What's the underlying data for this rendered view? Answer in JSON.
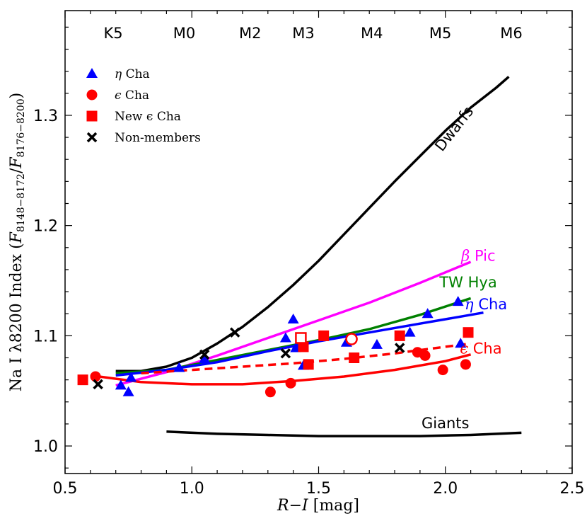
{
  "chart_data": {
    "type": "scatter",
    "xlabel": "R−I [mag]",
    "xlabel_var": "R−I",
    "xlabel_unit": "[mag]",
    "ylabel": "Na I λ8200 Index (F8148−8172/F8176−8200)",
    "ylabel_main": "Na I λ8200 Index (",
    "ylabel_num": "F",
    "ylabel_num_sub": "8148−8172",
    "ylabel_sep": "/",
    "ylabel_den": "F",
    "ylabel_den_sub": "8176−8200",
    "ylabel_close": ")",
    "xlim": [
      0.5,
      2.5
    ],
    "ylim": [
      0.975,
      1.395
    ],
    "x_ticks": [
      0.5,
      1.0,
      1.5,
      2.0,
      2.5
    ],
    "x_tick_labels": [
      "0.5",
      "1.0",
      "1.5",
      "2.0",
      "2.5"
    ],
    "y_ticks": [
      1.0,
      1.1,
      1.2,
      1.3
    ],
    "y_tick_labels": [
      "1.0",
      "1.1",
      "1.2",
      "1.3"
    ],
    "grid": false,
    "legend_position": "top-left",
    "spectral_types": [
      {
        "label": "K5",
        "x": 0.69
      },
      {
        "label": "M0",
        "x": 0.97
      },
      {
        "label": "M2",
        "x": 1.23
      },
      {
        "label": "M3",
        "x": 1.44
      },
      {
        "label": "M4",
        "x": 1.71
      },
      {
        "label": "M5",
        "x": 1.98
      },
      {
        "label": "M6",
        "x": 2.26
      }
    ],
    "series": [
      {
        "name": "η Cha",
        "marker": "triangle",
        "color": "#0000ff",
        "points": [
          [
            0.72,
            1.055
          ],
          [
            0.75,
            1.049
          ],
          [
            0.76,
            1.062
          ],
          [
            0.95,
            1.071
          ],
          [
            1.05,
            1.079
          ],
          [
            1.37,
            1.098
          ],
          [
            1.4,
            1.115
          ],
          [
            1.41,
            1.089
          ],
          [
            1.44,
            1.073
          ],
          [
            1.61,
            1.094
          ],
          [
            1.73,
            1.092
          ],
          [
            1.86,
            1.103
          ],
          [
            1.93,
            1.12
          ],
          [
            2.05,
            1.131
          ],
          [
            2.06,
            1.093
          ]
        ]
      },
      {
        "name": "ϵ Cha",
        "marker": "circle",
        "color": "#ff0000",
        "points": [
          [
            0.62,
            1.063
          ],
          [
            1.31,
            1.049
          ],
          [
            1.39,
            1.057
          ],
          [
            1.89,
            1.085
          ],
          [
            1.92,
            1.082
          ],
          [
            1.99,
            1.069
          ],
          [
            2.08,
            1.074
          ]
        ]
      },
      {
        "name": "ϵ Cha (open)",
        "marker": "open-circle",
        "color": "#ff0000",
        "points": [
          [
            1.63,
            1.097
          ]
        ]
      },
      {
        "name": "New ϵ Cha",
        "marker": "square",
        "color": "#ff0000",
        "points": [
          [
            0.57,
            1.06
          ],
          [
            1.44,
            1.09
          ],
          [
            1.46,
            1.074
          ],
          [
            1.52,
            1.1
          ],
          [
            1.64,
            1.08
          ],
          [
            1.82,
            1.1
          ],
          [
            2.09,
            1.103
          ]
        ]
      },
      {
        "name": "New ϵ Cha (open)",
        "marker": "open-square",
        "color": "#ff0000",
        "points": [
          [
            1.43,
            1.098
          ]
        ]
      },
      {
        "name": "Non-members",
        "marker": "x",
        "color": "#000000",
        "points": [
          [
            0.63,
            1.056
          ],
          [
            1.05,
            1.083
          ],
          [
            1.17,
            1.103
          ],
          [
            1.37,
            1.084
          ],
          [
            1.82,
            1.089
          ]
        ]
      }
    ],
    "curves": [
      {
        "name": "Dwarfs",
        "color": "#000000",
        "style": "solid",
        "points": [
          [
            0.7,
            1.068
          ],
          [
            0.8,
            1.068
          ],
          [
            0.9,
            1.072
          ],
          [
            1.0,
            1.08
          ],
          [
            1.1,
            1.093
          ],
          [
            1.2,
            1.108
          ],
          [
            1.3,
            1.126
          ],
          [
            1.4,
            1.146
          ],
          [
            1.5,
            1.168
          ],
          [
            1.6,
            1.192
          ],
          [
            1.7,
            1.216
          ],
          [
            1.8,
            1.24
          ],
          [
            1.9,
            1.263
          ],
          [
            2.0,
            1.286
          ],
          [
            2.1,
            1.307
          ],
          [
            2.2,
            1.325
          ],
          [
            2.25,
            1.335
          ]
        ]
      },
      {
        "name": "β Pic",
        "color": "#ff00ff",
        "style": "solid",
        "points": [
          [
            0.7,
            1.055
          ],
          [
            0.9,
            1.067
          ],
          [
            1.1,
            1.082
          ],
          [
            1.3,
            1.098
          ],
          [
            1.5,
            1.114
          ],
          [
            1.7,
            1.13
          ],
          [
            1.9,
            1.148
          ],
          [
            2.1,
            1.167
          ]
        ]
      },
      {
        "name": "TW Hya",
        "color": "#008000",
        "style": "solid",
        "points": [
          [
            0.7,
            1.066
          ],
          [
            0.9,
            1.069
          ],
          [
            1.1,
            1.078
          ],
          [
            1.3,
            1.087
          ],
          [
            1.5,
            1.096
          ],
          [
            1.7,
            1.106
          ],
          [
            1.9,
            1.119
          ],
          [
            2.1,
            1.134
          ]
        ]
      },
      {
        "name": "η Cha",
        "color": "#0000ff",
        "style": "solid",
        "points": [
          [
            0.7,
            1.064
          ],
          [
            0.9,
            1.069
          ],
          [
            1.1,
            1.076
          ],
          [
            1.3,
            1.086
          ],
          [
            1.5,
            1.095
          ],
          [
            1.7,
            1.103
          ],
          [
            1.9,
            1.111
          ],
          [
            2.15,
            1.121
          ]
        ]
      },
      {
        "name": "ϵ Cha",
        "color": "#ff0000",
        "style": "dashed",
        "points": [
          [
            0.8,
            1.066
          ],
          [
            1.0,
            1.069
          ],
          [
            1.2,
            1.072
          ],
          [
            1.4,
            1.075
          ],
          [
            1.6,
            1.079
          ],
          [
            1.8,
            1.084
          ],
          [
            2.0,
            1.09
          ],
          [
            2.1,
            1.093
          ]
        ]
      },
      {
        "name": "ϵ Cha",
        "color": "#ff0000",
        "style": "solid",
        "points": [
          [
            0.6,
            1.064
          ],
          [
            0.8,
            1.058
          ],
          [
            1.0,
            1.056
          ],
          [
            1.2,
            1.056
          ],
          [
            1.4,
            1.059
          ],
          [
            1.6,
            1.063
          ],
          [
            1.8,
            1.069
          ],
          [
            2.0,
            1.077
          ],
          [
            2.1,
            1.083
          ]
        ]
      },
      {
        "name": "Giants",
        "color": "#000000",
        "style": "solid",
        "points": [
          [
            0.9,
            1.013
          ],
          [
            1.1,
            1.011
          ],
          [
            1.3,
            1.01
          ],
          [
            1.5,
            1.009
          ],
          [
            1.7,
            1.009
          ],
          [
            1.9,
            1.009
          ],
          [
            2.1,
            1.01
          ],
          [
            2.3,
            1.012
          ]
        ]
      }
    ],
    "curve_labels": [
      {
        "text": "Dwarfs",
        "color": "#000000",
        "x": 2.05,
        "y": 1.285,
        "angle": -52
      },
      {
        "text_greek": "β",
        "text": " Pic",
        "color": "#ff00ff",
        "x": 2.13,
        "y": 1.168
      },
      {
        "text": "TW Hya",
        "color": "#008000",
        "x": 2.09,
        "y": 1.144
      },
      {
        "text_greek": "η",
        "text": " Cha",
        "color": "#0000ff",
        "x": 2.16,
        "y": 1.124
      },
      {
        "text_greek": "ϵ",
        "text": " Cha",
        "color": "#ff0000",
        "x": 2.14,
        "y": 1.084
      },
      {
        "text": "Giants",
        "color": "#000000",
        "x": 2.0,
        "y": 1.016
      }
    ],
    "legend": [
      {
        "marker": "triangle",
        "color": "#0000ff",
        "greek": "η",
        "label": " Cha"
      },
      {
        "marker": "circle",
        "color": "#ff0000",
        "greek": "ϵ",
        "label": " Cha"
      },
      {
        "marker": "square",
        "color": "#ff0000",
        "greek": "",
        "label": "New ϵ Cha"
      },
      {
        "marker": "x",
        "color": "#000000",
        "greek": "",
        "label": "Non-members"
      }
    ]
  }
}
